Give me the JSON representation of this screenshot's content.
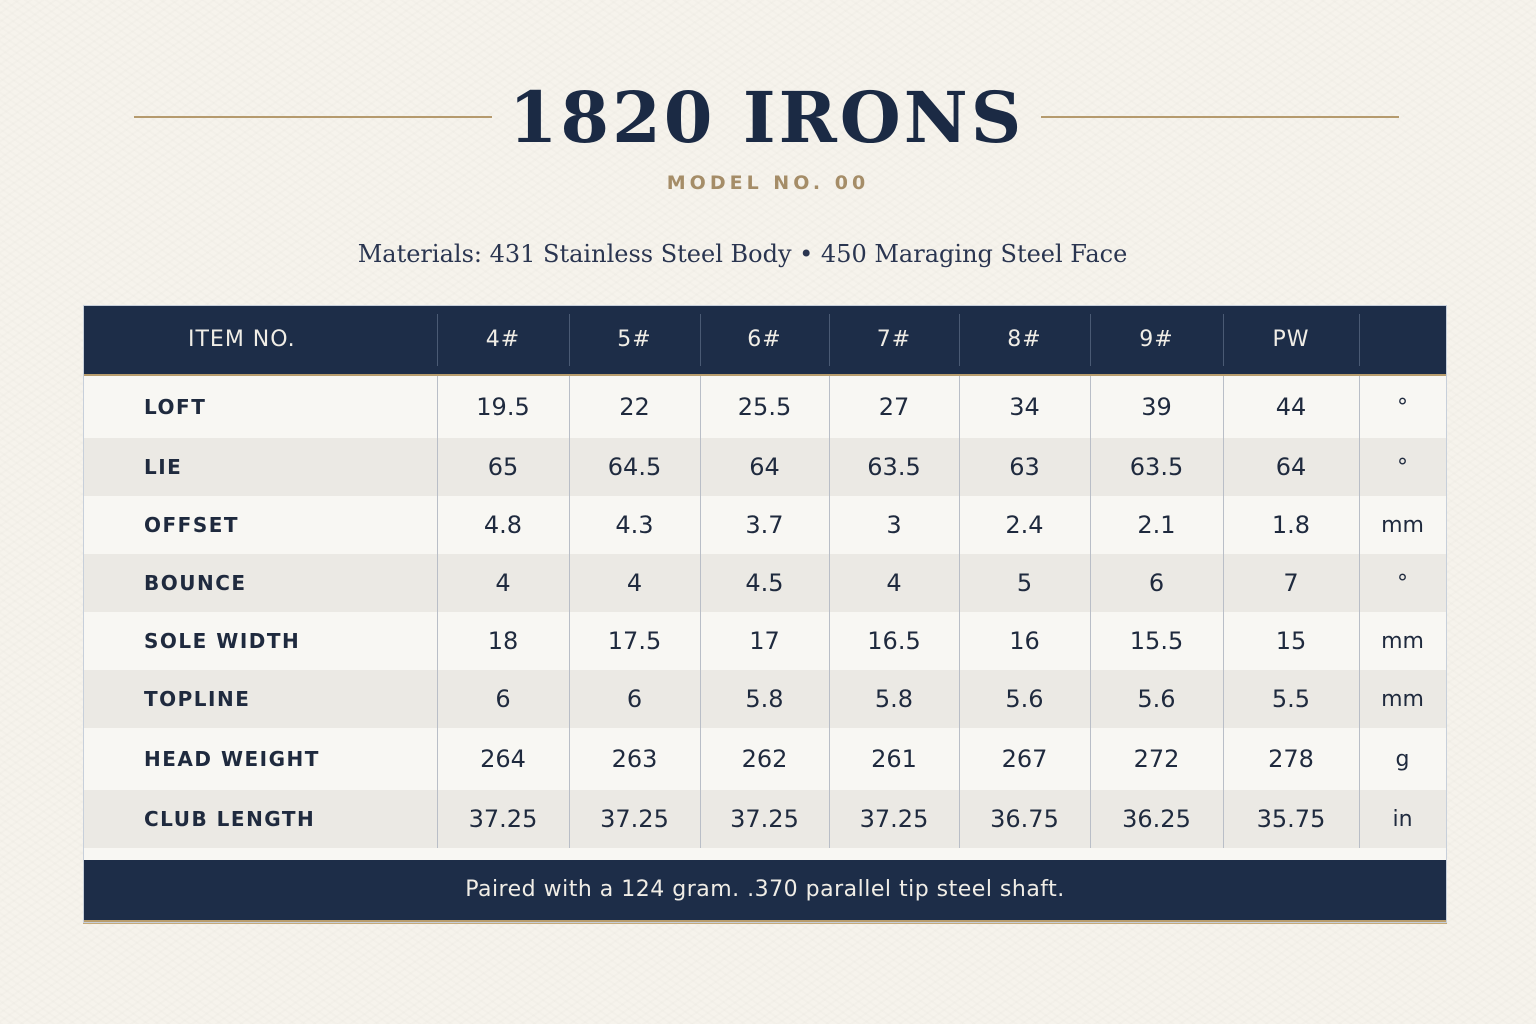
{
  "header": {
    "title": "1820 IRONS",
    "model": "MODEL NO. 00",
    "materials": "Materials: 431 Stainless Steel Body • 450 Maraging Steel Face"
  },
  "table": {
    "item_label": "ITEM NO.",
    "columns": [
      "4#",
      "5#",
      "6#",
      "7#",
      "8#",
      "9#",
      "PW"
    ],
    "rows": [
      {
        "label": "LOFT",
        "values": [
          "19.5",
          "22",
          "25.5",
          "27",
          "34",
          "39",
          "44"
        ],
        "unit": "°"
      },
      {
        "label": "LIE",
        "values": [
          "65",
          "64.5",
          "64",
          "63.5",
          "63",
          "63.5",
          "64"
        ],
        "unit": "°"
      },
      {
        "label": "OFFSET",
        "values": [
          "4.8",
          "4.3",
          "3.7",
          "3",
          "2.4",
          "2.1",
          "1.8"
        ],
        "unit": "mm"
      },
      {
        "label": "BOUNCE",
        "values": [
          "4",
          "4",
          "4.5",
          "4",
          "5",
          "6",
          "7"
        ],
        "unit": "°"
      },
      {
        "label": "SOLE WIDTH",
        "values": [
          "18",
          "17.5",
          "17",
          "16.5",
          "16",
          "15.5",
          "15"
        ],
        "unit": "mm"
      },
      {
        "label": "TOPLINE",
        "values": [
          "6",
          "6",
          "5.8",
          "5.8",
          "5.6",
          "5.6",
          "5.5"
        ],
        "unit": "mm"
      },
      {
        "label": "HEAD WEIGHT",
        "values": [
          "264",
          "263",
          "262",
          "261",
          "267",
          "272",
          "278"
        ],
        "unit": "g"
      },
      {
        "label": "CLUB LENGTH",
        "values": [
          "37.25",
          "37.25",
          "37.25",
          "37.25",
          "36.75",
          "36.25",
          "35.75"
        ],
        "unit": "in"
      }
    ],
    "footer": "Paired with a 124 gram. .370 parallel tip steel shaft."
  }
}
